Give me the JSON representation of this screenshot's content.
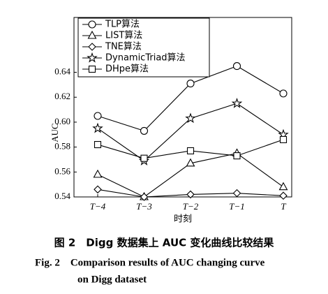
{
  "chart_data": {
    "type": "line",
    "y_label": "AUC",
    "x_label": "时刻",
    "categories": [
      "T−4",
      "T−3",
      "T−2",
      "T−1",
      "T"
    ],
    "series": [
      {
        "name": "TLP算法",
        "color": "#000000",
        "marker": "circle",
        "values": [
          0.605,
          0.593,
          0.631,
          0.645,
          0.623
        ]
      },
      {
        "name": "LIST算法",
        "color": "#000000",
        "marker": "triangle",
        "values": [
          0.558,
          0.54,
          0.567,
          0.575,
          0.548
        ]
      },
      {
        "name": "TNE算法",
        "color": "#000000",
        "marker": "diamond",
        "values": [
          0.546,
          0.54,
          0.542,
          0.543,
          0.541
        ]
      },
      {
        "name": "DynamicTriad算法",
        "color": "#000000",
        "marker": "star",
        "values": [
          0.595,
          0.569,
          0.603,
          0.615,
          0.59
        ]
      },
      {
        "name": "DHpe算法",
        "color": "#000000",
        "marker": "square",
        "values": [
          0.582,
          0.571,
          0.577,
          0.573,
          0.586
        ]
      }
    ],
    "ylim": [
      0.54,
      0.684
    ],
    "yticks": [
      0.54,
      0.56,
      0.58,
      {
        "value": 0.6,
        "label": "0.60"
      },
      0.62,
      0.64
    ],
    "legend": "upper-left",
    "caption": [
      "图 2　Digg 数据集上 AUC 变化曲线比较结果",
      "Fig. 2　Comparison results of AUC changing curve",
      "on Digg dataset"
    ]
  }
}
